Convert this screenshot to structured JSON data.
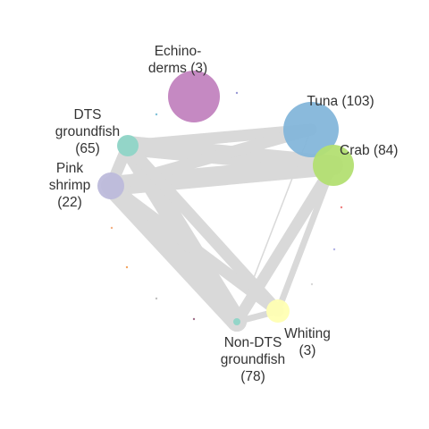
{
  "nodes": [
    {
      "id": "echinoderms",
      "label_lines": [
        "Echino-",
        "derms (3)"
      ],
      "color": "#C283BF",
      "size": "large"
    },
    {
      "id": "tuna",
      "label_lines": [
        "Tuna (103)"
      ],
      "color": "#84B6DA",
      "size": "large"
    },
    {
      "id": "crab",
      "label_lines": [
        "Crab (84)"
      ],
      "color": "#B3DF72",
      "size": "medium"
    },
    {
      "id": "dts_groundfish",
      "label_lines": [
        "DTS",
        "groundfish",
        "(65)"
      ],
      "color": "#8FD5C7",
      "size": "small"
    },
    {
      "id": "pink_shrimp",
      "label_lines": [
        "Pink",
        "shrimp",
        "(22)"
      ],
      "color": "#BDBADB",
      "size": "small"
    },
    {
      "id": "whiting",
      "label_lines": [
        "Whiting",
        "(3)"
      ],
      "color": "#FFFFB3",
      "size": "small"
    },
    {
      "id": "non_dts_groundfish",
      "label_lines": [
        "Non-DTS",
        "groundfish",
        "(78)"
      ],
      "color": "#8FD5C7",
      "size": "tiny"
    }
  ],
  "edge_color": "#D9D9D9",
  "edges": [
    {
      "from": "dts_groundfish",
      "to": "crab",
      "weight": "heavy"
    },
    {
      "from": "pink_shrimp",
      "to": "crab",
      "weight": "heavy"
    },
    {
      "from": "dts_groundfish",
      "to": "tuna",
      "weight": "medium"
    },
    {
      "from": "pink_shrimp",
      "to": "tuna",
      "weight": "medium"
    },
    {
      "from": "dts_groundfish",
      "to": "pink_shrimp",
      "weight": "medium"
    },
    {
      "from": "dts_groundfish",
      "to": "non_dts_groundfish",
      "weight": "heavy"
    },
    {
      "from": "pink_shrimp",
      "to": "non_dts_groundfish",
      "weight": "heavy"
    },
    {
      "from": "dts_groundfish",
      "to": "whiting",
      "weight": "medium"
    },
    {
      "from": "pink_shrimp",
      "to": "whiting",
      "weight": "medium"
    },
    {
      "from": "non_dts_groundfish",
      "to": "crab",
      "weight": "medium"
    },
    {
      "from": "whiting",
      "to": "crab",
      "weight": "light"
    },
    {
      "from": "non_dts_groundfish",
      "to": "tuna",
      "weight": "thin"
    },
    {
      "from": "non_dts_groundfish",
      "to": "whiting",
      "weight": "light"
    }
  ]
}
